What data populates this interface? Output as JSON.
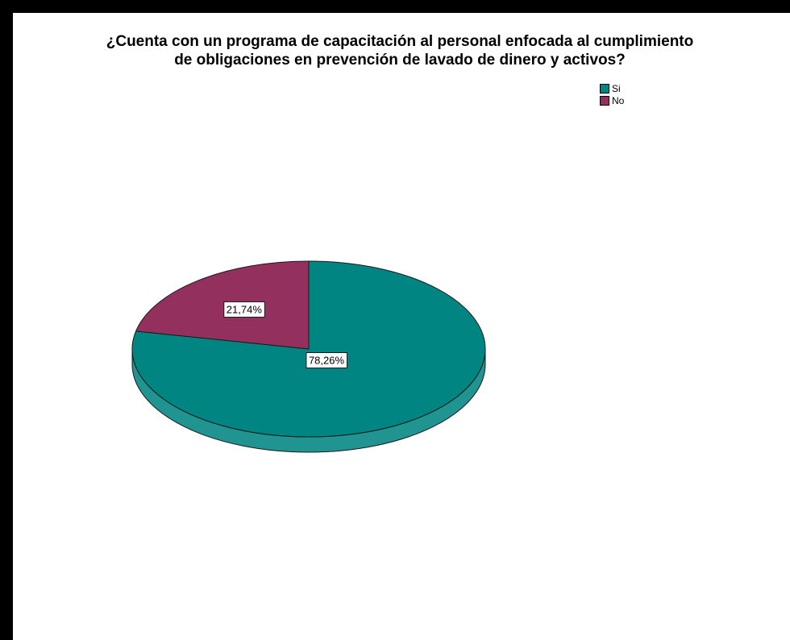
{
  "chart_data": {
    "type": "pie",
    "title_lines": [
      "¿Cuenta con un programa de capacitación al personal enfocada al cumplimiento",
      "de obligaciones en prevención de lavado de dinero y activos?"
    ],
    "categories": [
      "Si",
      "No"
    ],
    "values": [
      78.26,
      21.74
    ],
    "data_labels": [
      "78,26%",
      "21,74%"
    ],
    "colors": [
      "#008582",
      "#93305E"
    ],
    "legend_position": "top-right",
    "three_d": true
  }
}
